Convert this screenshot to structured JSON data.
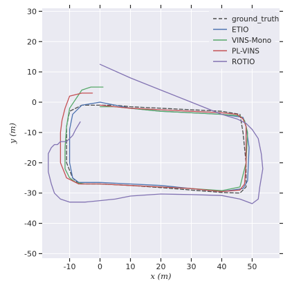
{
  "chart_data": {
    "type": "line",
    "xlabel": "x (m)",
    "ylabel": "y (m)",
    "xlim": [
      -19,
      59
    ],
    "ylim": [
      -51.5,
      31
    ],
    "xticks": [
      -10,
      0,
      10,
      20,
      30,
      40,
      50
    ],
    "yticks": [
      -50,
      -40,
      -30,
      -20,
      -10,
      0,
      10,
      20,
      30
    ],
    "grid": true,
    "legend_position": "top-right",
    "colors": {
      "background": "#eaeaf2",
      "grid": "#ffffff"
    },
    "series": [
      {
        "name": "ground_truth",
        "color": "#4a4a4a",
        "dashed": true,
        "x": [
          0,
          -6,
          -10,
          -11,
          -11,
          -9,
          -7,
          0,
          10,
          20,
          30,
          40,
          46,
          48,
          48,
          47,
          46,
          40,
          30,
          20,
          10,
          5,
          0
        ],
        "y": [
          -1,
          -1,
          -3,
          -8,
          -20,
          -25,
          -27,
          -27,
          -27.5,
          -28.2,
          -29,
          -29.8,
          -30,
          -28,
          -20,
          -10,
          -4,
          -3,
          -2.5,
          -2,
          -1.5,
          -1,
          -1
        ]
      },
      {
        "name": "ETIO",
        "color": "#4c72b0",
        "dashed": false,
        "x": [
          0,
          -6,
          -9,
          -10,
          -10,
          -9,
          -7,
          0,
          10,
          20,
          30,
          40,
          47,
          48.5,
          49,
          48,
          47,
          40,
          30,
          20,
          10,
          5,
          0
        ],
        "y": [
          0,
          -1,
          -4,
          -9,
          -20,
          -25,
          -26.5,
          -26.5,
          -27,
          -27.5,
          -28.5,
          -29.5,
          -28.5,
          -26,
          -15,
          -8,
          -5,
          -4,
          -3.5,
          -3,
          -2,
          -1,
          0
        ]
      },
      {
        "name": "VINS-Mono",
        "color": "#55a868",
        "dashed": false,
        "x": [
          1,
          0,
          -3,
          -6,
          -10,
          -11,
          -11.5,
          -11.5,
          -10,
          -8,
          -5,
          0,
          10,
          20,
          30,
          40,
          46,
          48,
          48.5,
          47.5,
          46,
          40,
          30,
          20,
          10,
          5,
          0
        ],
        "y": [
          5,
          5,
          5,
          4,
          -2,
          -8,
          -15,
          -22,
          -25,
          -26.5,
          -27,
          -27,
          -27.5,
          -28,
          -28.5,
          -29.2,
          -28,
          -20,
          -10,
          -6,
          -4.5,
          -4,
          -3.5,
          -3,
          -2,
          -1.5,
          -1.5
        ]
      },
      {
        "name": "PL-VINS",
        "color": "#c44e52",
        "dashed": false,
        "x": [
          -2.5,
          -6,
          -10,
          -11.5,
          -12.5,
          -13,
          -13,
          -11,
          -7,
          0,
          10,
          20,
          30,
          40,
          46,
          47.5,
          48,
          48,
          47,
          45,
          40,
          30,
          20,
          10,
          5,
          0
        ],
        "y": [
          3,
          3,
          2,
          -2,
          -6,
          -10,
          -20,
          -25,
          -27,
          -27,
          -27.5,
          -28,
          -28.5,
          -29.5,
          -29,
          -27,
          -20,
          -8,
          -5.5,
          -4,
          -3.5,
          -3,
          -2.5,
          -2,
          -1.5,
          -1
        ]
      },
      {
        "name": "ROTIO",
        "color": "#8172b2",
        "dashed": false,
        "x": [
          0,
          10,
          20,
          30,
          40,
          45,
          48,
          50,
          52,
          53,
          53.5,
          52.5,
          52,
          50,
          46,
          40,
          30,
          20,
          10,
          5,
          0,
          -5,
          -10,
          -13,
          -15,
          -16,
          -17,
          -17,
          -16,
          -15,
          -14,
          -13,
          -11,
          -9,
          -8,
          -6.5
        ],
        "y": [
          12.5,
          8,
          4,
          0,
          -4,
          -5.5,
          -7,
          -9,
          -12,
          -17,
          -22,
          -28,
          -32,
          -33.5,
          -32,
          -30.8,
          -30.5,
          -30.3,
          -31,
          -32,
          -32.5,
          -33,
          -33,
          -32,
          -30,
          -27,
          -23,
          -17,
          -15,
          -14,
          -14,
          -13,
          -13,
          -11,
          -9,
          -6.5
        ]
      }
    ]
  }
}
